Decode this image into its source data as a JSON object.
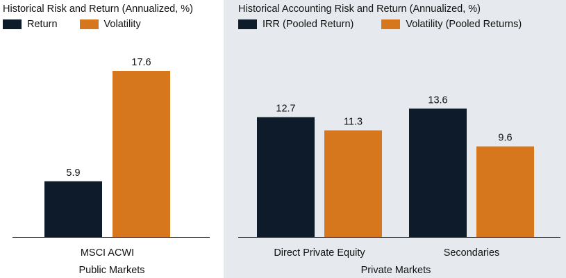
{
  "colors": {
    "return": "#0d1b2a",
    "volatility": "#d6761d",
    "axis": "#222222",
    "right_bg": "#e6e9ed"
  },
  "chart_data": [
    {
      "type": "bar",
      "title": "Historical Risk and Return (Annualized, %)",
      "categories": [
        "MSCI ACWI"
      ],
      "group_label": "Public Markets",
      "series": [
        {
          "name": "Return",
          "color": "#0d1b2a",
          "values": [
            5.9
          ]
        },
        {
          "name": "Volatility",
          "color": "#d6761d",
          "values": [
            17.6
          ]
        }
      ],
      "data_labels": [
        [
          "5.9"
        ],
        [
          "17.6"
        ]
      ],
      "ylim": [
        0,
        17.6
      ],
      "grid": false,
      "legend_position": "top-left"
    },
    {
      "type": "bar",
      "title": "Historical Accounting Risk and Return (Annualized, %)",
      "categories": [
        "Direct Private Equity",
        "Secondaries"
      ],
      "group_label": "Private Markets",
      "series": [
        {
          "name": "IRR (Pooled Return)",
          "color": "#0d1b2a",
          "values": [
            12.7,
            13.6
          ]
        },
        {
          "name": "Volatility (Pooled Returns)",
          "color": "#d6761d",
          "values": [
            11.3,
            9.6
          ]
        }
      ],
      "data_labels": [
        [
          "12.7",
          "13.6"
        ],
        [
          "11.3",
          "9.6"
        ]
      ],
      "ylim": [
        0,
        17.6
      ],
      "grid": false,
      "legend_position": "top-left"
    }
  ]
}
